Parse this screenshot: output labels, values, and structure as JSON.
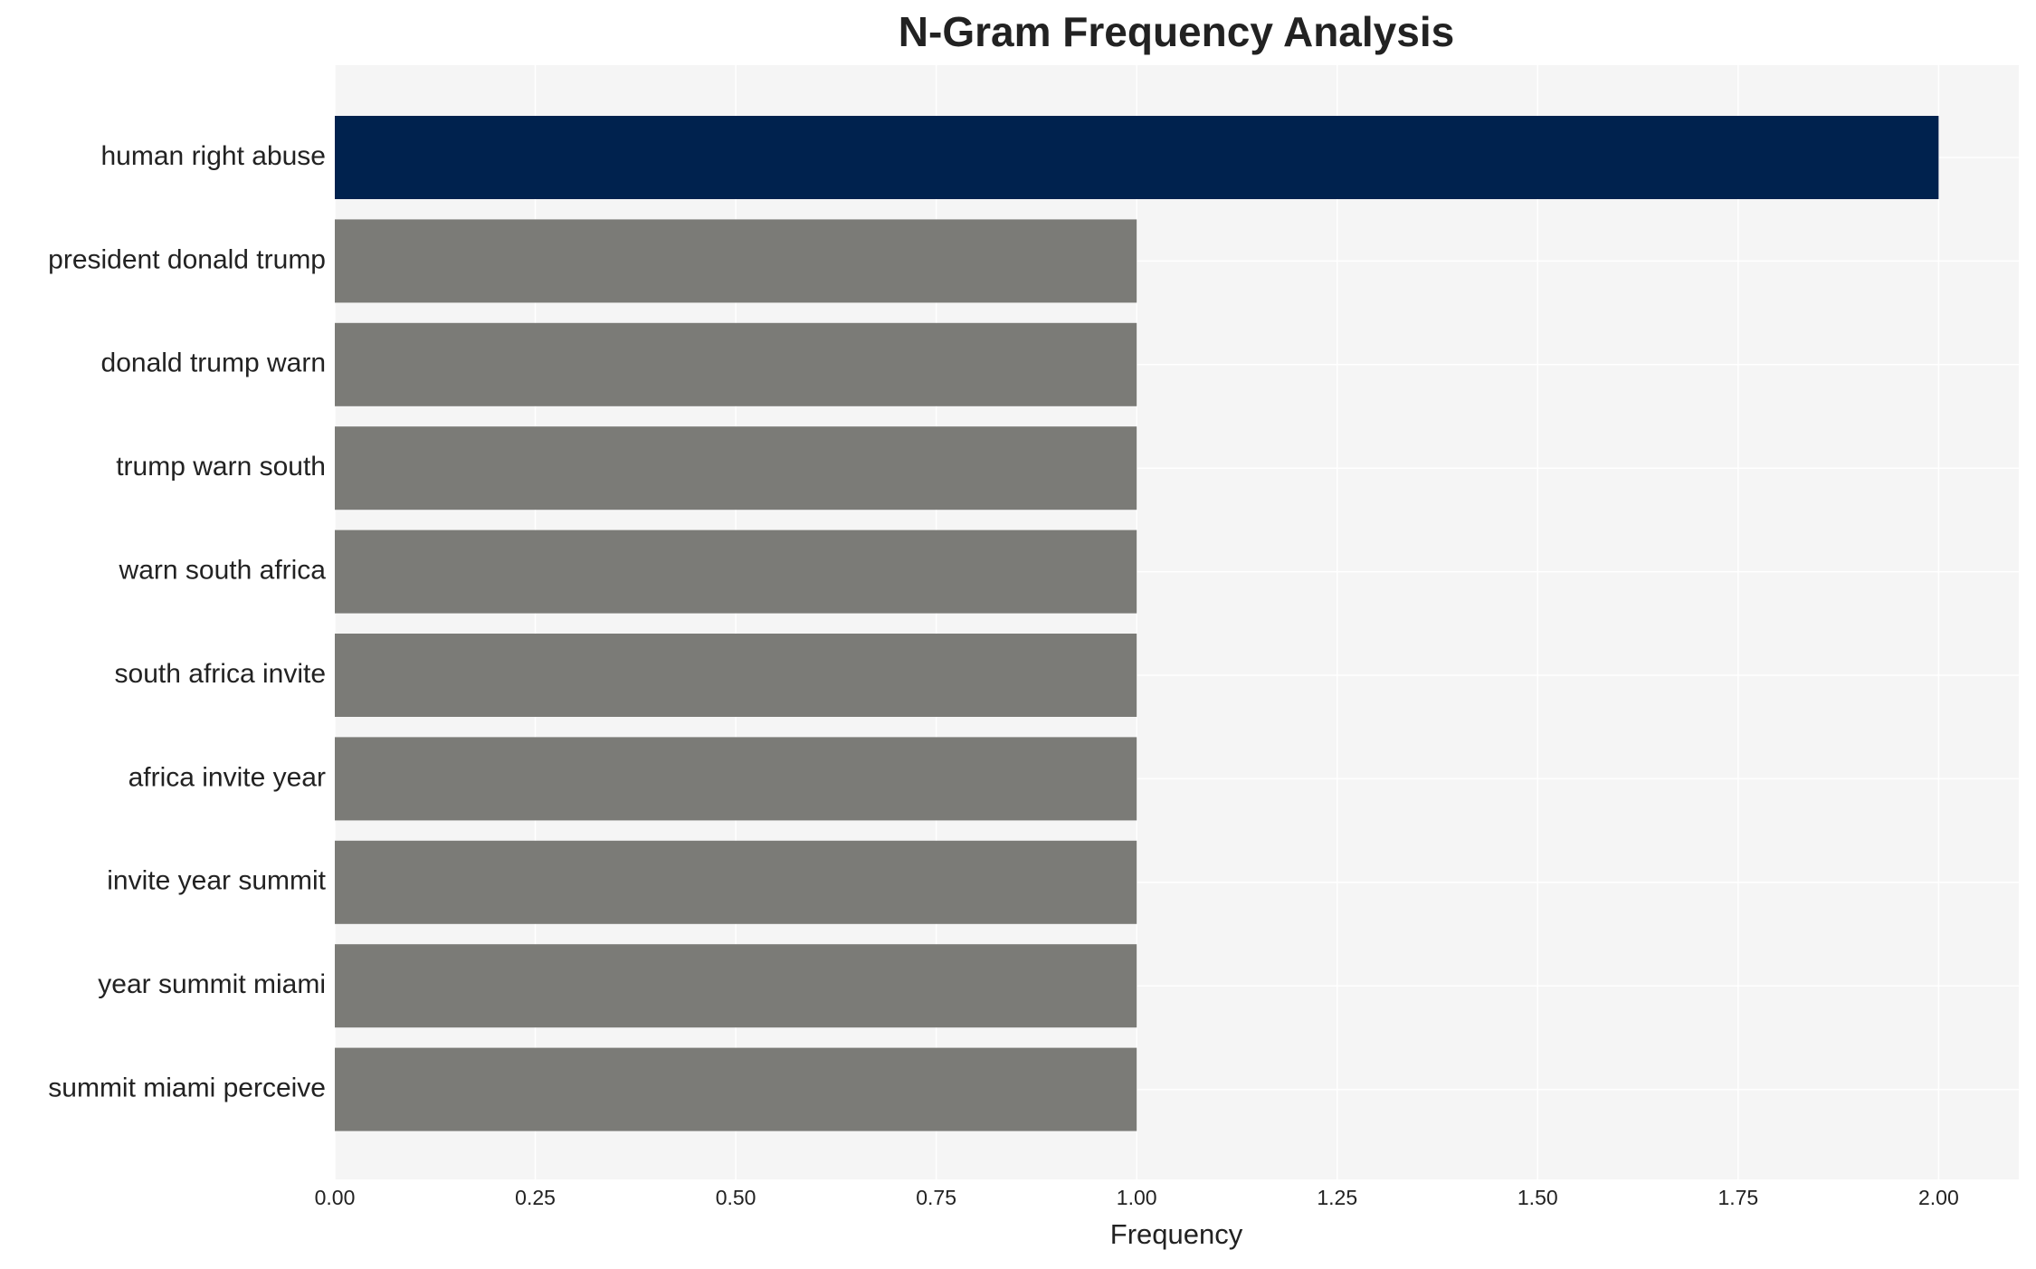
{
  "chart_data": {
    "type": "bar",
    "orientation": "horizontal",
    "title": "N-Gram Frequency Analysis",
    "x_label": "Frequency",
    "categories": [
      "human right abuse",
      "president donald trump",
      "donald trump warn",
      "trump warn south",
      "warn south africa",
      "south africa invite",
      "africa invite year",
      "invite year summit",
      "year summit miami",
      "summit miami perceive"
    ],
    "values": [
      2,
      1,
      1,
      1,
      1,
      1,
      1,
      1,
      1,
      1
    ],
    "colors": [
      "#00224e",
      "#7b7b77",
      "#7b7b77",
      "#7b7b77",
      "#7b7b77",
      "#7b7b77",
      "#7b7b77",
      "#7b7b77",
      "#7b7b77",
      "#7b7b77"
    ],
    "xlim": [
      0,
      2.1
    ],
    "xticks": [
      {
        "value": 0,
        "label": "0.00"
      },
      {
        "value": 0.25,
        "label": "0.25"
      },
      {
        "value": 0.5,
        "label": "0.50"
      },
      {
        "value": 0.75,
        "label": "0.75"
      },
      {
        "value": 1,
        "label": "1.00"
      },
      {
        "value": 1.25,
        "label": "1.25"
      },
      {
        "value": 1.5,
        "label": "1.50"
      },
      {
        "value": 1.75,
        "label": "1.75"
      },
      {
        "value": 2,
        "label": "2.00"
      }
    ],
    "grid": true
  }
}
